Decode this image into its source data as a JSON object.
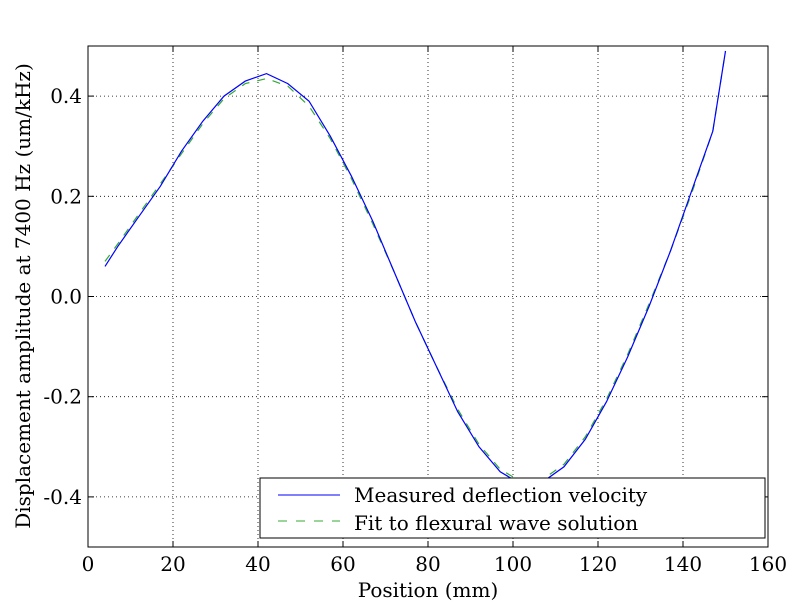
{
  "chart_data": {
    "type": "line",
    "title": "",
    "xlabel": "Position (mm)",
    "ylabel": "Displacement amplitude at 7400 Hz (um/kHz)",
    "xlim": [
      0,
      160
    ],
    "ylim": [
      -0.5,
      0.5
    ],
    "xticks": [
      0,
      20,
      40,
      60,
      80,
      100,
      120,
      140,
      160
    ],
    "xtick_labels": [
      "0",
      "20",
      "40",
      "60",
      "80",
      "100",
      "120",
      "140",
      "160"
    ],
    "yticks": [
      -0.4,
      -0.2,
      0.0,
      0.2,
      0.4
    ],
    "ytick_labels": [
      "-0.4",
      "-0.2",
      "0.0",
      "0.2",
      "0.4"
    ],
    "grid": true,
    "legend_position": "lower-right",
    "series": [
      {
        "name": "Measured deflection velocity",
        "color": "#0000ff",
        "style": "solid",
        "x": [
          4,
          7,
          12,
          17,
          22,
          27,
          32,
          37,
          42,
          47,
          52,
          57,
          62,
          67,
          72,
          77,
          82,
          87,
          92,
          97,
          102,
          107,
          112,
          117,
          122,
          127,
          132,
          137,
          142,
          147,
          150
        ],
        "y": [
          0.06,
          0.1,
          0.16,
          0.22,
          0.29,
          0.35,
          0.4,
          0.43,
          0.445,
          0.425,
          0.39,
          0.32,
          0.24,
          0.15,
          0.05,
          -0.05,
          -0.14,
          -0.23,
          -0.3,
          -0.35,
          -0.375,
          -0.37,
          -0.34,
          -0.285,
          -0.21,
          -0.12,
          -0.02,
          0.09,
          0.21,
          0.33,
          0.49
        ]
      },
      {
        "name": "Fit to flexural wave solution",
        "color": "#33aa33",
        "style": "dashed",
        "x": [
          4,
          7,
          12,
          17,
          22,
          27,
          32,
          37,
          42,
          47,
          52,
          57,
          62,
          67,
          72,
          77,
          82,
          87,
          92,
          97,
          102,
          107,
          112,
          117,
          122,
          127,
          132,
          137,
          142,
          147,
          150
        ],
        "y": [
          0.07,
          0.105,
          0.165,
          0.225,
          0.285,
          0.345,
          0.395,
          0.425,
          0.435,
          0.42,
          0.38,
          0.315,
          0.235,
          0.145,
          0.05,
          -0.05,
          -0.14,
          -0.225,
          -0.295,
          -0.345,
          -0.37,
          -0.365,
          -0.335,
          -0.28,
          -0.205,
          -0.115,
          -0.015,
          0.09,
          0.205,
          0.33,
          0.49
        ]
      }
    ]
  }
}
